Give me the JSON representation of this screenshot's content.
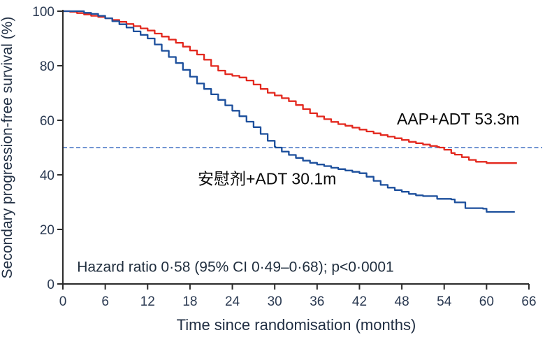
{
  "figure": {
    "y_axis_label": "Secondary progression-free survival (%)",
    "x_axis_label": "Time since randomisation (months)",
    "hazard_annotation": "Hazard ratio 0·58 (95% CI 0·49–0·68); p<0·0001"
  },
  "chart_data": {
    "type": "line",
    "subtype": "kaplan-meier-step",
    "title": "",
    "xlabel": "Time since randomisation (months)",
    "ylabel": "Secondary progression-free survival (%)",
    "xlim": [
      0,
      66
    ],
    "ylim": [
      0,
      100
    ],
    "x_ticks": [
      0,
      6,
      12,
      18,
      24,
      30,
      36,
      42,
      48,
      54,
      60,
      66
    ],
    "y_ticks": [
      0,
      20,
      40,
      60,
      80,
      100
    ],
    "grid": false,
    "legend_position": "inline-labels",
    "reference_line": {
      "y": 50,
      "style": "dashed",
      "color": "#4472c4"
    },
    "annotation": {
      "text": "Hazard ratio 0·58 (95% CI 0·49–0·68); p<0·0001",
      "x": 2.0,
      "y": 4.5
    },
    "series": [
      {
        "name": "AAP+ADT",
        "label": "AAP+ADT 53.3m",
        "median_months": 53.3,
        "color": "#e3281e",
        "label_pos": {
          "x": 47.3,
          "y": 58.5
        },
        "points": [
          [
            0,
            100
          ],
          [
            1,
            99.8
          ],
          [
            2,
            99.3
          ],
          [
            3,
            98.8
          ],
          [
            4,
            98.3
          ],
          [
            5,
            97.9
          ],
          [
            6,
            97.4
          ],
          [
            7,
            96.8
          ],
          [
            8,
            96.1
          ],
          [
            9,
            95.3
          ],
          [
            10,
            94.5
          ],
          [
            11,
            93.7
          ],
          [
            12,
            92.9
          ],
          [
            13,
            91.8
          ],
          [
            14,
            90.7
          ],
          [
            15,
            89.6
          ],
          [
            16,
            88.4
          ],
          [
            17,
            87.0
          ],
          [
            18,
            85.6
          ],
          [
            19,
            84.1
          ],
          [
            20,
            82.2
          ],
          [
            21,
            79.9
          ],
          [
            22,
            78.2
          ],
          [
            23,
            76.9
          ],
          [
            24,
            76.3
          ],
          [
            25,
            75.7
          ],
          [
            26,
            74.6
          ],
          [
            27,
            73.1
          ],
          [
            28,
            71.5
          ],
          [
            29,
            70.1
          ],
          [
            30,
            69.1
          ],
          [
            31,
            68.1
          ],
          [
            32,
            67.0
          ],
          [
            33,
            65.6
          ],
          [
            34,
            64.1
          ],
          [
            35,
            62.6
          ],
          [
            36,
            61.4
          ],
          [
            37,
            60.4
          ],
          [
            38,
            59.4
          ],
          [
            39,
            58.6
          ],
          [
            40,
            58.0
          ],
          [
            41,
            57.3
          ],
          [
            42,
            56.6
          ],
          [
            43,
            55.9
          ],
          [
            44,
            55.2
          ],
          [
            45,
            54.6
          ],
          [
            46,
            54.0
          ],
          [
            47,
            53.4
          ],
          [
            48,
            52.8
          ],
          [
            49,
            52.1
          ],
          [
            50,
            51.6
          ],
          [
            51,
            51.1
          ],
          [
            52,
            50.6
          ],
          [
            53,
            50.2
          ],
          [
            53.3,
            50.0
          ],
          [
            54,
            49.2
          ],
          [
            55,
            48.0
          ],
          [
            55.5,
            47.4
          ],
          [
            56.5,
            46.5
          ],
          [
            57.5,
            45.5
          ],
          [
            58.5,
            44.8
          ],
          [
            60,
            44.3
          ],
          [
            64.3,
            44.3
          ]
        ]
      },
      {
        "name": "安慰剂+ADT",
        "label": "安慰剂+ADT 30.1m",
        "median_months": 30.1,
        "color": "#1c4f9c",
        "label_pos": {
          "x": 19.1,
          "y": 36.5
        },
        "points": [
          [
            0,
            100
          ],
          [
            2,
            100
          ],
          [
            3,
            99.4
          ],
          [
            4,
            99.0
          ],
          [
            5,
            98.3
          ],
          [
            6,
            97.4
          ],
          [
            7,
            96.3
          ],
          [
            8,
            95.2
          ],
          [
            9,
            94.0
          ],
          [
            10,
            92.6
          ],
          [
            11,
            91.3
          ],
          [
            12,
            90.0
          ],
          [
            13,
            87.8
          ],
          [
            14,
            85.5
          ],
          [
            15,
            83.2
          ],
          [
            16,
            81.0
          ],
          [
            17,
            78.5
          ],
          [
            18,
            76.0
          ],
          [
            19,
            73.5
          ],
          [
            20,
            71.5
          ],
          [
            21,
            69.5
          ],
          [
            22,
            67.5
          ],
          [
            23,
            65.5
          ],
          [
            24,
            63.5
          ],
          [
            25,
            61.5
          ],
          [
            26,
            59.5
          ],
          [
            27,
            57.5
          ],
          [
            28,
            55.0
          ],
          [
            29,
            52.5
          ],
          [
            30,
            50.3
          ],
          [
            30.1,
            50.0
          ],
          [
            31,
            48.5
          ],
          [
            32,
            47.3
          ],
          [
            33,
            46.2
          ],
          [
            34,
            45.2
          ],
          [
            35,
            44.4
          ],
          [
            36,
            43.8
          ],
          [
            37,
            43.2
          ],
          [
            38,
            42.6
          ],
          [
            39,
            42.1
          ],
          [
            40,
            41.6
          ],
          [
            41,
            41.1
          ],
          [
            42,
            40.6
          ],
          [
            43,
            39.3
          ],
          [
            44,
            37.8
          ],
          [
            45,
            36.3
          ],
          [
            46,
            35.3
          ],
          [
            47,
            34.4
          ],
          [
            48,
            33.8
          ],
          [
            49,
            33.0
          ],
          [
            50,
            32.5
          ],
          [
            51,
            32.2
          ],
          [
            52.5,
            32.2
          ],
          [
            53,
            31.2
          ],
          [
            55,
            31.0
          ],
          [
            55.5,
            29.9
          ],
          [
            57,
            27.8
          ],
          [
            59.5,
            27.6
          ],
          [
            60,
            26.4
          ],
          [
            64,
            26.4
          ]
        ]
      }
    ]
  }
}
